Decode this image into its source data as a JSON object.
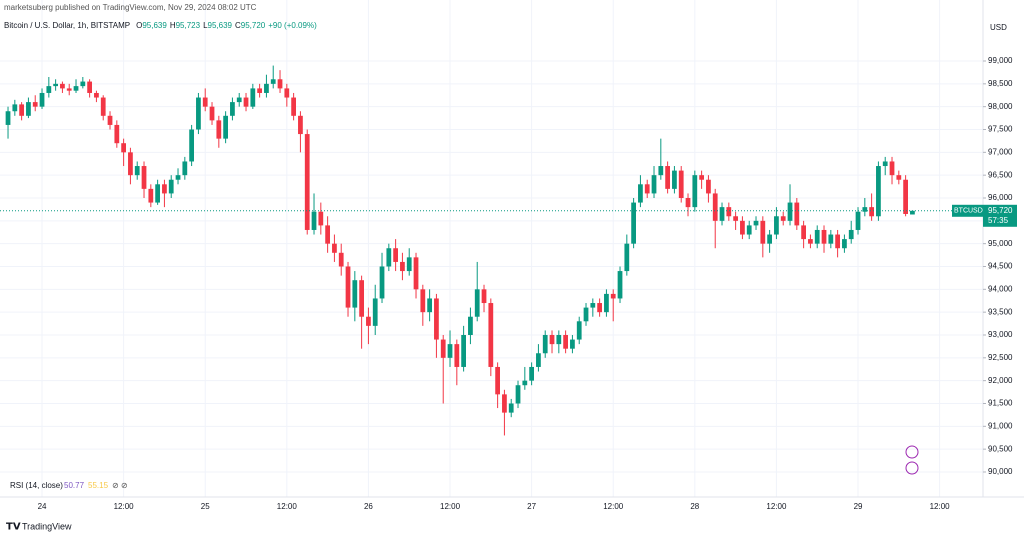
{
  "header": {
    "publisher": "marketsuberg published on TradingView.com, Nov 29, 2024 08:02 UTC"
  },
  "chart_data": {
    "type": "candlestick",
    "title": "Bitcoin / U.S. Dollar, 1h, BITSTAMP",
    "ohlc_legend": [
      {
        "key": "O",
        "value": 95639,
        "label": "95,639"
      },
      {
        "key": "H",
        "value": 95723,
        "label": "95,723"
      },
      {
        "key": "L",
        "value": 95639,
        "label": "95,639"
      },
      {
        "key": "C",
        "value": 95720,
        "label": "95,720"
      }
    ],
    "change": "+90 (+0.09%)",
    "currency": "USD",
    "symbol": "BTCUSD",
    "last_price": {
      "value": 95720,
      "label": "95,720"
    },
    "countdown": "57:35",
    "up_color": "#089981",
    "down_color": "#f23645",
    "grid": true,
    "xlim": [
      -1.18,
      143.38
    ],
    "xticks": [
      {
        "value": 5,
        "label": "24"
      },
      {
        "value": 17,
        "label": "12:00"
      },
      {
        "value": 29,
        "label": "25"
      },
      {
        "value": 41,
        "label": "12:00"
      },
      {
        "value": 53,
        "label": "26"
      },
      {
        "value": 65,
        "label": "12:00"
      },
      {
        "value": 77,
        "label": "27"
      },
      {
        "value": 89,
        "label": "12:00"
      },
      {
        "value": 101,
        "label": "28"
      },
      {
        "value": 113,
        "label": "12:00"
      },
      {
        "value": 125,
        "label": "29"
      },
      {
        "value": 137,
        "label": "12:00"
      }
    ],
    "ylim": [
      89496,
      100336
    ],
    "yticks": [
      {
        "value": 90000,
        "label": "90,000"
      },
      {
        "value": 90500,
        "label": "90,500"
      },
      {
        "value": 91000,
        "label": "91,000"
      },
      {
        "value": 91500,
        "label": "91,500"
      },
      {
        "value": 92000,
        "label": "92,000"
      },
      {
        "value": 92500,
        "label": "92,500"
      },
      {
        "value": 93000,
        "label": "93,000"
      },
      {
        "value": 93500,
        "label": "93,500"
      },
      {
        "value": 94000,
        "label": "94,000"
      },
      {
        "value": 94500,
        "label": "94,500"
      },
      {
        "value": 95000,
        "label": "95,000"
      },
      {
        "value": 95500,
        "label": "95,500"
      },
      {
        "value": 96000,
        "label": "96,000"
      },
      {
        "value": 96500,
        "label": "96,500"
      },
      {
        "value": 97000,
        "label": "97,000"
      },
      {
        "value": 97500,
        "label": "97,500"
      },
      {
        "value": 98000,
        "label": "98,000"
      },
      {
        "value": 98500,
        "label": "98,500"
      },
      {
        "value": 99000,
        "label": "99,000"
      }
    ],
    "candles": [
      [
        97600,
        98000,
        97300,
        97900
      ],
      [
        97900,
        98150,
        97800,
        98050
      ],
      [
        98050,
        98100,
        97700,
        97800
      ],
      [
        97800,
        98200,
        97750,
        98100
      ],
      [
        98100,
        98250,
        97900,
        98000
      ],
      [
        98000,
        98400,
        97950,
        98300
      ],
      [
        98300,
        98650,
        98200,
        98450
      ],
      [
        98450,
        98600,
        98350,
        98500
      ],
      [
        98500,
        98550,
        98300,
        98400
      ],
      [
        98400,
        98500,
        98250,
        98350
      ],
      [
        98350,
        98600,
        98300,
        98450
      ],
      [
        98450,
        98650,
        98400,
        98550
      ],
      [
        98550,
        98600,
        98200,
        98300
      ],
      [
        98300,
        98350,
        98100,
        98200
      ],
      [
        98200,
        98250,
        97700,
        97800
      ],
      [
        97800,
        97900,
        97500,
        97600
      ],
      [
        97600,
        97700,
        97100,
        97200
      ],
      [
        97200,
        97300,
        96700,
        97000
      ],
      [
        97000,
        97100,
        96300,
        96500
      ],
      [
        96500,
        96800,
        96400,
        96700
      ],
      [
        96700,
        96800,
        96000,
        96200
      ],
      [
        96200,
        96300,
        95800,
        95900
      ],
      [
        95900,
        96400,
        95850,
        96300
      ],
      [
        96300,
        96400,
        95800,
        96100
      ],
      [
        96100,
        96500,
        96000,
        96400
      ],
      [
        96400,
        96650,
        96300,
        96500
      ],
      [
        96500,
        96900,
        96400,
        96800
      ],
      [
        96800,
        97600,
        96700,
        97500
      ],
      [
        97500,
        98300,
        97400,
        98200
      ],
      [
        98200,
        98400,
        97900,
        98000
      ],
      [
        98000,
        98100,
        97600,
        97700
      ],
      [
        97700,
        97800,
        97100,
        97300
      ],
      [
        97300,
        97900,
        97200,
        97800
      ],
      [
        97800,
        98200,
        97700,
        98100
      ],
      [
        98100,
        98300,
        98000,
        98200
      ],
      [
        98200,
        98300,
        97900,
        98000
      ],
      [
        98000,
        98500,
        97950,
        98400
      ],
      [
        98400,
        98500,
        98200,
        98300
      ],
      [
        98300,
        98700,
        98200,
        98500
      ],
      [
        98500,
        98900,
        98400,
        98600
      ],
      [
        98600,
        98800,
        98300,
        98400
      ],
      [
        98400,
        98500,
        98000,
        98200
      ],
      [
        98200,
        98300,
        97700,
        97800
      ],
      [
        97800,
        97900,
        97000,
        97400
      ],
      [
        97400,
        97500,
        95200,
        95300
      ],
      [
        95300,
        96100,
        95200,
        95700
      ],
      [
        95700,
        95900,
        95200,
        95400
      ],
      [
        95400,
        95600,
        94800,
        95000
      ],
      [
        95000,
        95200,
        94600,
        94800
      ],
      [
        94800,
        95000,
        94300,
        94500
      ],
      [
        94500,
        94600,
        93400,
        93600
      ],
      [
        93600,
        94400,
        93300,
        94200
      ],
      [
        94200,
        94300,
        92700,
        93400
      ],
      [
        93400,
        93600,
        92800,
        93200
      ],
      [
        93200,
        94100,
        93000,
        93800
      ],
      [
        93800,
        94800,
        93700,
        94500
      ],
      [
        94500,
        95000,
        94400,
        94900
      ],
      [
        94900,
        95100,
        94400,
        94600
      ],
      [
        94600,
        94800,
        94200,
        94400
      ],
      [
        94400,
        94900,
        94300,
        94700
      ],
      [
        94700,
        94800,
        93800,
        94000
      ],
      [
        94000,
        94100,
        93200,
        93500
      ],
      [
        93500,
        94000,
        93300,
        93800
      ],
      [
        93800,
        93900,
        92500,
        92900
      ],
      [
        92900,
        93000,
        91500,
        92500
      ],
      [
        92500,
        93100,
        92300,
        92800
      ],
      [
        92800,
        92900,
        91900,
        92300
      ],
      [
        92300,
        93200,
        92200,
        93000
      ],
      [
        93000,
        93600,
        92800,
        93400
      ],
      [
        93400,
        94600,
        93300,
        94000
      ],
      [
        94000,
        94100,
        93500,
        93700
      ],
      [
        93700,
        93800,
        92100,
        92300
      ],
      [
        92300,
        92400,
        91400,
        91700
      ],
      [
        91700,
        91800,
        90800,
        91300
      ],
      [
        91300,
        91600,
        91200,
        91500
      ],
      [
        91500,
        92000,
        91400,
        91900
      ],
      [
        91900,
        92300,
        91800,
        92000
      ],
      [
        92000,
        92400,
        91900,
        92300
      ],
      [
        92300,
        92800,
        92200,
        92600
      ],
      [
        92600,
        93100,
        92500,
        93000
      ],
      [
        93000,
        93100,
        92600,
        92800
      ],
      [
        92800,
        93100,
        92600,
        93000
      ],
      [
        93000,
        93100,
        92600,
        92700
      ],
      [
        92700,
        93000,
        92600,
        92900
      ],
      [
        92900,
        93400,
        92800,
        93300
      ],
      [
        93300,
        93700,
        93200,
        93600
      ],
      [
        93600,
        93800,
        93400,
        93700
      ],
      [
        93700,
        93800,
        93400,
        93500
      ],
      [
        93500,
        94000,
        93400,
        93900
      ],
      [
        93900,
        94000,
        93300,
        93800
      ],
      [
        93800,
        94500,
        93700,
        94400
      ],
      [
        94400,
        95200,
        94300,
        95000
      ],
      [
        95000,
        96000,
        94900,
        95900
      ],
      [
        95900,
        96500,
        95800,
        96300
      ],
      [
        96300,
        96400,
        96000,
        96100
      ],
      [
        96100,
        96700,
        96000,
        96500
      ],
      [
        96500,
        97300,
        96400,
        96700
      ],
      [
        96700,
        96800,
        96100,
        96200
      ],
      [
        96200,
        96700,
        96100,
        96600
      ],
      [
        96600,
        96700,
        95900,
        96000
      ],
      [
        96000,
        96100,
        95600,
        95800
      ],
      [
        95800,
        96600,
        95700,
        96500
      ],
      [
        96500,
        96600,
        96200,
        96400
      ],
      [
        96400,
        96500,
        95900,
        96100
      ],
      [
        96100,
        96200,
        94900,
        95500
      ],
      [
        95500,
        95900,
        95400,
        95800
      ],
      [
        95800,
        95900,
        95500,
        95600
      ],
      [
        95600,
        95700,
        95300,
        95500
      ],
      [
        95500,
        95600,
        95100,
        95200
      ],
      [
        95200,
        95500,
        95100,
        95400
      ],
      [
        95400,
        95600,
        95300,
        95500
      ],
      [
        95500,
        95600,
        94700,
        95000
      ],
      [
        95000,
        95300,
        94800,
        95200
      ],
      [
        95200,
        95800,
        95100,
        95600
      ],
      [
        95600,
        95700,
        95400,
        95500
      ],
      [
        95500,
        96300,
        95400,
        95900
      ],
      [
        95900,
        96000,
        95300,
        95400
      ],
      [
        95400,
        95500,
        94900,
        95100
      ],
      [
        95100,
        95200,
        94900,
        95000
      ],
      [
        95000,
        95400,
        94900,
        95300
      ],
      [
        95300,
        95400,
        94800,
        95000
      ],
      [
        95000,
        95300,
        94900,
        95200
      ],
      [
        95200,
        95300,
        94700,
        94900
      ],
      [
        94900,
        95200,
        94800,
        95100
      ],
      [
        95100,
        95500,
        95000,
        95300
      ],
      [
        95300,
        95800,
        95200,
        95700
      ],
      [
        95700,
        96000,
        95600,
        95800
      ],
      [
        95800,
        96100,
        95500,
        95600
      ],
      [
        95600,
        96800,
        95500,
        96700
      ],
      [
        96700,
        96900,
        96500,
        96800
      ],
      [
        96800,
        96900,
        96300,
        96500
      ],
      [
        96500,
        96600,
        96300,
        96400
      ],
      [
        96400,
        96500,
        95600,
        95650
      ],
      [
        95639,
        95723,
        95639,
        95720
      ]
    ],
    "indicator": {
      "name": "RSI (14, close)",
      "values": [
        50.77,
        55.15
      ]
    }
  },
  "footer": {
    "brand": "TradingView"
  }
}
